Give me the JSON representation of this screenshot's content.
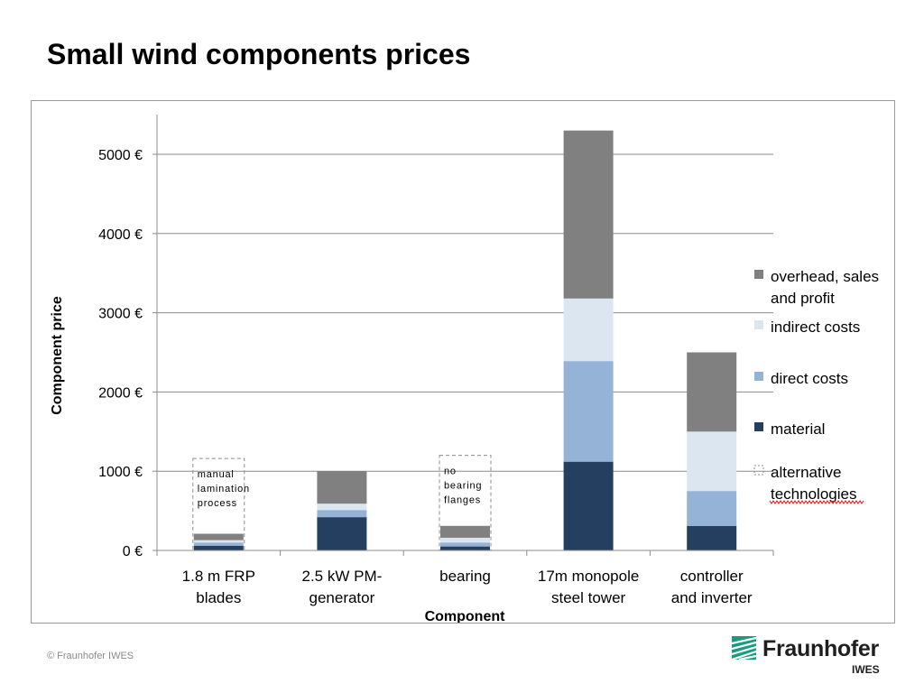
{
  "slide": {
    "title": "Small wind components prices",
    "copyright": "© Fraunhofer IWES"
  },
  "logo": {
    "name": "Fraunhofer",
    "sub": "IWES",
    "mark_color": "#179c7d"
  },
  "chart_data": {
    "type": "bar",
    "stacked": true,
    "title": "",
    "xlabel": "Component",
    "ylabel": "Component  price",
    "ylim": [
      0,
      5500
    ],
    "yticks": [
      0,
      1000,
      2000,
      3000,
      4000,
      5000
    ],
    "ytick_labels": [
      "0 €",
      "1000 €",
      "2000 €",
      "3000 €",
      "4000 €",
      "5000 €"
    ],
    "grid": true,
    "legend_position": "right",
    "categories": [
      [
        "1.8 m FRP",
        "blades"
      ],
      [
        "2.5 kW PM-",
        "generator"
      ],
      [
        "bearing"
      ],
      [
        "17m monopole",
        "steel tower"
      ],
      [
        "controller",
        "and inverter"
      ]
    ],
    "series": [
      {
        "name": "material",
        "color": "#243f60",
        "values": [
          60,
          420,
          50,
          1120,
          310
        ]
      },
      {
        "name": "direct costs",
        "color": "#95b3d7",
        "values": [
          40,
          90,
          50,
          1270,
          440
        ]
      },
      {
        "name": "indirect costs",
        "color": "#dce6f1",
        "values": [
          30,
          80,
          60,
          790,
          750
        ]
      },
      {
        "name": "overhead, sales and profit",
        "color": "#808080",
        "values": [
          80,
          410,
          150,
          2120,
          1000
        ]
      }
    ],
    "alternative_technologies": {
      "legend_label": "alternative technologies",
      "boxes": [
        {
          "category_index": 0,
          "top_value": 1160,
          "label": [
            "manual",
            "lamination",
            "process"
          ]
        },
        {
          "category_index": 2,
          "top_value": 1200,
          "label": [
            "no",
            "bearing",
            "flanges"
          ]
        }
      ]
    },
    "legend_labels": [
      [
        "overhead, sales",
        "and profit"
      ],
      [
        "indirect costs"
      ],
      [
        "direct costs"
      ],
      [
        "material"
      ],
      [
        "alternative",
        "technologies"
      ]
    ]
  }
}
